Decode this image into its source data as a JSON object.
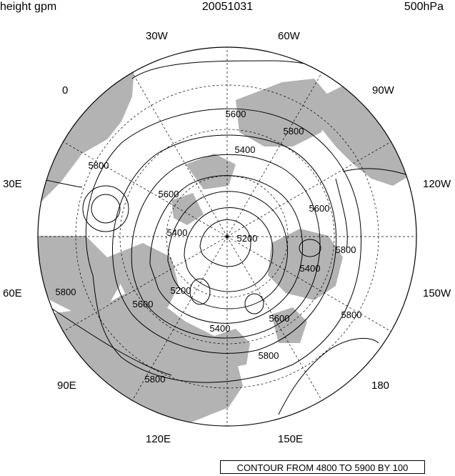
{
  "header": {
    "left": "height gpm",
    "center": "20051031",
    "right": "500hPa"
  },
  "longitude_labels": [
    {
      "name": "lon-30w",
      "text": "30W"
    },
    {
      "name": "lon-60w",
      "text": "60W"
    },
    {
      "name": "lon-90w",
      "text": "90W"
    },
    {
      "name": "lon-120w",
      "text": "120W"
    },
    {
      "name": "lon-150w",
      "text": "150W"
    },
    {
      "name": "lon-180",
      "text": "180"
    },
    {
      "name": "lon-150e",
      "text": "150E"
    },
    {
      "name": "lon-120e",
      "text": "120E"
    },
    {
      "name": "lon-90e",
      "text": "90E"
    },
    {
      "name": "lon-60e",
      "text": "60E"
    },
    {
      "name": "lon-30e",
      "text": "30E"
    },
    {
      "name": "lon-0",
      "text": "0"
    }
  ],
  "contour_labels": [
    {
      "name": "contour-label-5600-top",
      "text": "5600"
    },
    {
      "name": "contour-label-5800-ne",
      "text": "5800"
    },
    {
      "name": "contour-label-5400-top",
      "text": "5400"
    },
    {
      "name": "contour-label-5800-w",
      "text": "5800"
    },
    {
      "name": "contour-label-5600-w",
      "text": "5600"
    },
    {
      "name": "contour-label-5400-w",
      "text": "5400"
    },
    {
      "name": "contour-label-5600-e",
      "text": "5600"
    },
    {
      "name": "contour-label-5200-c",
      "text": "5200"
    },
    {
      "name": "contour-label-5800-e",
      "text": "5800"
    },
    {
      "name": "contour-label-5400-e",
      "text": "5400"
    },
    {
      "name": "contour-label-5200-sw",
      "text": "5200"
    },
    {
      "name": "contour-label-5800-sw",
      "text": "5800"
    },
    {
      "name": "contour-label-5800-se",
      "text": "5800"
    },
    {
      "name": "contour-label-5600-s",
      "text": "5600"
    },
    {
      "name": "contour-label-5400-s",
      "text": "5400"
    },
    {
      "name": "contour-label-5600-se",
      "text": "5600"
    },
    {
      "name": "contour-label-5800-s",
      "text": "5800"
    },
    {
      "name": "contour-label-5800-s2",
      "text": "5800"
    }
  ],
  "contour_info": "CONTOUR FROM 4800 TO 5900 BY 100",
  "colors": {
    "land": "#b3b3b3",
    "ocean": "#ffffff",
    "lines": "#000000"
  }
}
